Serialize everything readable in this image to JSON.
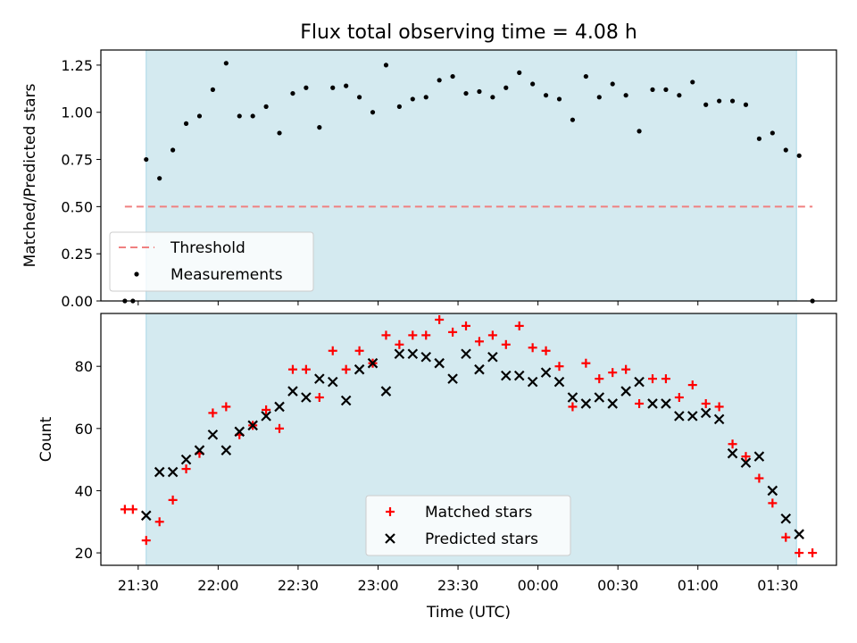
{
  "chart_data": [
    {
      "type": "scatter",
      "title": "Flux total observing time = 4.08 h",
      "ylabel": "Matched/Predicted stars",
      "xlim": [
        "21:16",
        "01:52"
      ],
      "ylim": [
        0,
        1.33
      ],
      "yticks": [
        "0.00",
        "0.25",
        "0.50",
        "0.75",
        "1.00",
        "1.25"
      ],
      "ytick_values": [
        0,
        0.25,
        0.5,
        0.75,
        1.0,
        1.25
      ],
      "legend_position": "lower-left",
      "observing_window": [
        "21:33",
        "01:37"
      ],
      "x": [
        "21:25",
        "21:28",
        "21:33",
        "21:38",
        "21:43",
        "21:48",
        "21:53",
        "21:58",
        "22:03",
        "22:08",
        "22:13",
        "22:18",
        "22:23",
        "22:28",
        "22:33",
        "22:38",
        "22:43",
        "22:48",
        "22:53",
        "22:58",
        "23:03",
        "23:08",
        "23:13",
        "23:18",
        "23:23",
        "23:28",
        "23:33",
        "23:38",
        "23:43",
        "23:48",
        "23:53",
        "23:58",
        "00:03",
        "00:08",
        "00:13",
        "00:18",
        "00:23",
        "00:28",
        "00:33",
        "00:38",
        "00:43",
        "00:48",
        "00:53",
        "00:58",
        "01:03",
        "01:08",
        "01:13",
        "01:18",
        "01:23",
        "01:28",
        "01:33",
        "01:38",
        "01:43"
      ],
      "series": [
        {
          "name": "Threshold",
          "color": "#f08080",
          "style": "dashed",
          "values": [
            0.5,
            0.5
          ],
          "x": [
            "21:25",
            "01:43"
          ]
        },
        {
          "name": "Measurements",
          "color": "#000000",
          "values": [
            0.0,
            0.0,
            0.75,
            0.65,
            0.8,
            0.94,
            0.98,
            1.12,
            1.26,
            0.98,
            0.98,
            1.03,
            0.89,
            1.1,
            1.13,
            0.92,
            1.13,
            1.14,
            1.08,
            1.0,
            1.25,
            1.03,
            1.07,
            1.08,
            1.17,
            1.19,
            1.1,
            1.11,
            1.08,
            1.13,
            1.21,
            1.15,
            1.09,
            1.07,
            0.96,
            1.19,
            1.08,
            1.15,
            1.09,
            0.9,
            1.12,
            1.12,
            1.09,
            1.16,
            1.04,
            1.06,
            1.06,
            1.04,
            0.86,
            0.89,
            0.8,
            0.77,
            0.0
          ]
        }
      ]
    },
    {
      "type": "scatter",
      "xlabel": "Time (UTC)",
      "ylabel": "Count",
      "xlim": [
        "21:16",
        "01:52"
      ],
      "ylim": [
        16,
        97
      ],
      "yticks": [
        "20",
        "40",
        "60",
        "80"
      ],
      "ytick_values": [
        20,
        40,
        60,
        80
      ],
      "xticks": [
        "21:30",
        "22:00",
        "22:30",
        "23:00",
        "23:30",
        "00:00",
        "00:30",
        "01:00",
        "01:30"
      ],
      "legend_position": "lower-center",
      "observing_window": [
        "21:33",
        "01:37"
      ],
      "x": [
        "21:25",
        "21:28",
        "21:33",
        "21:38",
        "21:43",
        "21:48",
        "21:53",
        "21:58",
        "22:03",
        "22:08",
        "22:13",
        "22:18",
        "22:23",
        "22:28",
        "22:33",
        "22:38",
        "22:43",
        "22:48",
        "22:53",
        "22:58",
        "23:03",
        "23:08",
        "23:13",
        "23:18",
        "23:23",
        "23:28",
        "23:33",
        "23:38",
        "23:43",
        "23:48",
        "23:53",
        "23:58",
        "00:03",
        "00:08",
        "00:13",
        "00:18",
        "00:23",
        "00:28",
        "00:33",
        "00:38",
        "00:43",
        "00:48",
        "00:53",
        "00:58",
        "01:03",
        "01:08",
        "01:13",
        "01:18",
        "01:23",
        "01:28",
        "01:33",
        "01:38",
        "01:43"
      ],
      "series": [
        {
          "name": "Matched stars",
          "color": "#ff0000",
          "marker": "+",
          "values": [
            34,
            34,
            24,
            30,
            37,
            47,
            52,
            65,
            67,
            58,
            61,
            66,
            60,
            79,
            79,
            70,
            85,
            79,
            85,
            81,
            90,
            87,
            90,
            90,
            95,
            91,
            93,
            88,
            90,
            87,
            93,
            86,
            85,
            80,
            67,
            81,
            76,
            78,
            79,
            68,
            76,
            76,
            70,
            74,
            68,
            67,
            55,
            51,
            44,
            36,
            25,
            20,
            20
          ]
        },
        {
          "name": "Predicted stars",
          "color": "#000000",
          "marker": "x",
          "values": [
            null,
            null,
            32,
            46,
            46,
            50,
            53,
            58,
            53,
            59,
            61,
            64,
            67,
            72,
            70,
            76,
            75,
            69,
            79,
            81,
            72,
            84,
            84,
            83,
            81,
            76,
            84,
            79,
            83,
            77,
            77,
            75,
            78,
            75,
            70,
            68,
            70,
            68,
            72,
            75,
            68,
            68,
            64,
            64,
            65,
            63,
            52,
            49,
            51,
            40,
            31,
            26,
            null
          ]
        }
      ]
    }
  ]
}
